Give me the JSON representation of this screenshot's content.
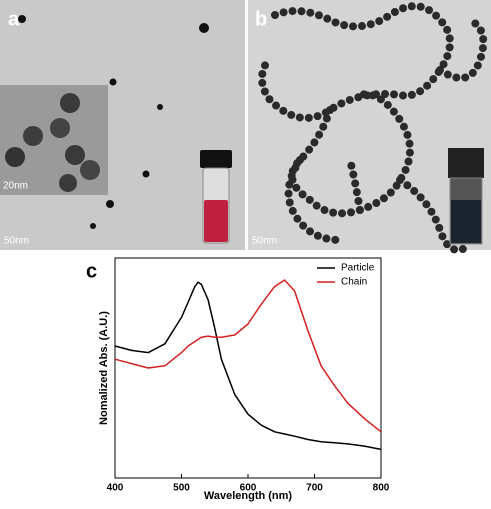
{
  "panels": [
    {
      "label": "a",
      "scale_bar": "50nm",
      "inset_scale_bar": "20nm"
    },
    {
      "label": "b",
      "scale_bar": "50nm"
    }
  ],
  "chart_data": {
    "type": "line",
    "panel_label": "c",
    "x_label": "Wavelength (nm)",
    "y_label": "Nomalized Abs. (A.U.)",
    "x": [
      400,
      425,
      450,
      475,
      500,
      510,
      520,
      525,
      530,
      540,
      550,
      560,
      580,
      600,
      620,
      640,
      655,
      670,
      690,
      710,
      730,
      750,
      775,
      800
    ],
    "series": [
      {
        "name": "Particle",
        "color": "#000000",
        "values": [
          0.6,
          0.58,
          0.57,
          0.61,
          0.73,
          0.8,
          0.87,
          0.89,
          0.88,
          0.81,
          0.68,
          0.54,
          0.38,
          0.29,
          0.24,
          0.21,
          0.2,
          0.19,
          0.175,
          0.165,
          0.16,
          0.155,
          0.145,
          0.13
        ]
      },
      {
        "name": "Chain",
        "color": "#d42020",
        "values": [
          0.54,
          0.52,
          0.5,
          0.51,
          0.57,
          0.6,
          0.62,
          0.63,
          0.64,
          0.645,
          0.64,
          0.64,
          0.65,
          0.7,
          0.79,
          0.87,
          0.9,
          0.85,
          0.67,
          0.51,
          0.42,
          0.34,
          0.27,
          0.21
        ]
      }
    ],
    "xlim": [
      400,
      800
    ],
    "xticks": [
      400,
      500,
      600,
      700,
      800
    ],
    "ylim": [
      0,
      1
    ],
    "legend": "upper-right"
  }
}
